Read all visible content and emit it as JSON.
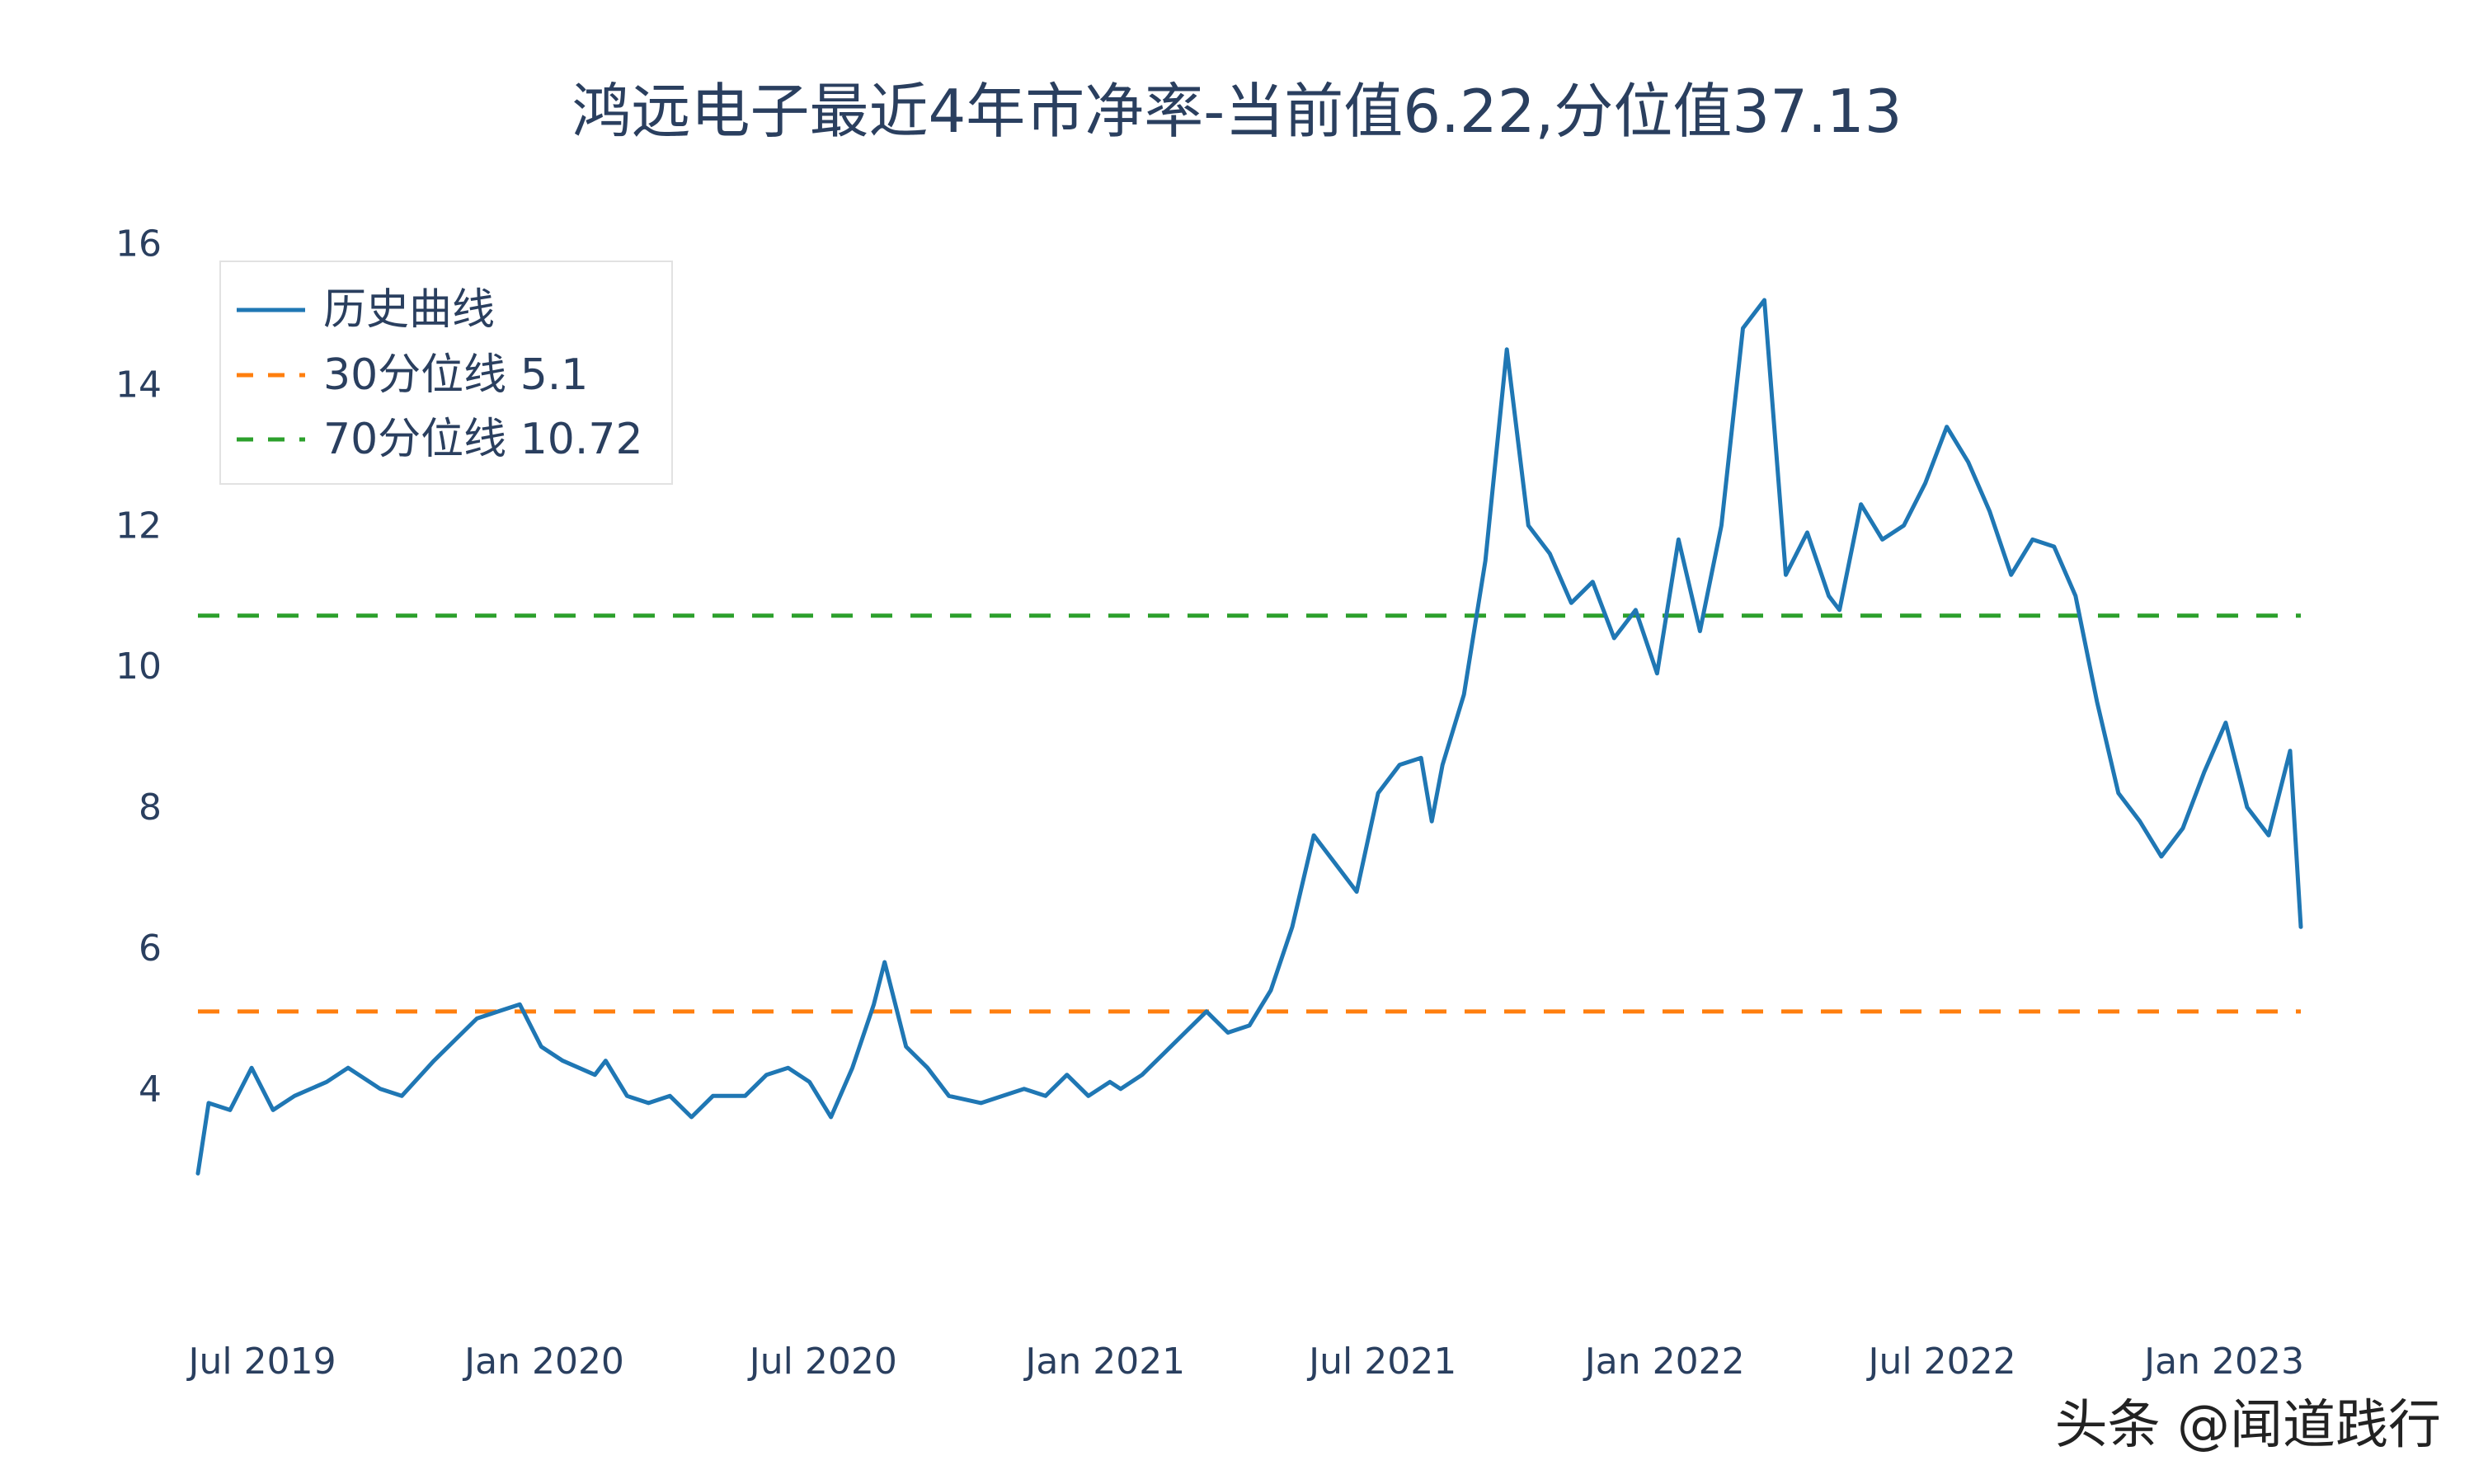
{
  "chart_data": {
    "type": "line",
    "title": "鸿远电子最近4年市净率-当前值6.22,分位值37.13",
    "xlabel": "",
    "ylabel": "",
    "ylim": [
      1.2,
      16.3
    ],
    "y_ticks": [
      4,
      6,
      8,
      10,
      12,
      14,
      16
    ],
    "y_tick_labels": [
      "4",
      "6",
      "8",
      "10",
      "12",
      "14",
      "16"
    ],
    "x_ticks": [
      "Jul 2019",
      "Jan 2020",
      "Jul 2020",
      "Jan 2021",
      "Jul 2021",
      "Jan 2022",
      "Jul 2022",
      "Jan 2023"
    ],
    "x_range": [
      "2019-05-20",
      "2023-02-20"
    ],
    "grid": false,
    "legend_position": "top-left",
    "series": [
      {
        "name": "历史曲线",
        "style": "solid",
        "color": "#1f77b4",
        "x": [
          "2019-05-20",
          "2019-05-27",
          "2019-06-10",
          "2019-06-24",
          "2019-07-08",
          "2019-07-22",
          "2019-08-12",
          "2019-08-26",
          "2019-09-16",
          "2019-09-30",
          "2019-10-21",
          "2019-11-04",
          "2019-11-18",
          "2019-12-02",
          "2019-12-16",
          "2019-12-30",
          "2020-01-13",
          "2020-02-03",
          "2020-02-10",
          "2020-02-24",
          "2020-03-09",
          "2020-03-23",
          "2020-04-06",
          "2020-04-20",
          "2020-05-11",
          "2020-05-25",
          "2020-06-08",
          "2020-06-22",
          "2020-07-06",
          "2020-07-20",
          "2020-08-03",
          "2020-08-10",
          "2020-08-24",
          "2020-09-07",
          "2020-09-21",
          "2020-10-12",
          "2020-10-26",
          "2020-11-09",
          "2020-11-23",
          "2020-12-07",
          "2020-12-21",
          "2021-01-04",
          "2021-01-11",
          "2021-01-25",
          "2021-02-08",
          "2021-02-22",
          "2021-03-08",
          "2021-03-22",
          "2021-04-05",
          "2021-04-19",
          "2021-05-03",
          "2021-05-17",
          "2021-05-31",
          "2021-06-14",
          "2021-06-28",
          "2021-07-12",
          "2021-07-26",
          "2021-08-02",
          "2021-08-09",
          "2021-08-23",
          "2021-09-06",
          "2021-09-20",
          "2021-10-04",
          "2021-10-18",
          "2021-11-01",
          "2021-11-15",
          "2021-11-29",
          "2021-12-13",
          "2021-12-27",
          "2022-01-10",
          "2022-01-24",
          "2022-02-07",
          "2022-02-21",
          "2022-03-07",
          "2022-03-21",
          "2022-04-04",
          "2022-04-18",
          "2022-04-25",
          "2022-05-09",
          "2022-05-23",
          "2022-06-06",
          "2022-06-20",
          "2022-07-04",
          "2022-07-18",
          "2022-08-01",
          "2022-08-15",
          "2022-08-29",
          "2022-09-12",
          "2022-09-26",
          "2022-10-10",
          "2022-10-24",
          "2022-11-07",
          "2022-11-21",
          "2022-12-05",
          "2022-12-19",
          "2023-01-02",
          "2023-01-16",
          "2023-01-30",
          "2023-02-13",
          "2023-02-20"
        ],
        "values": [
          2.8,
          3.8,
          3.7,
          4.3,
          3.7,
          3.9,
          4.1,
          4.3,
          4.0,
          3.9,
          4.4,
          4.7,
          5.0,
          5.1,
          5.2,
          4.6,
          4.4,
          4.2,
          4.4,
          3.9,
          3.8,
          3.9,
          3.6,
          3.9,
          3.9,
          4.2,
          4.3,
          4.1,
          3.6,
          4.3,
          5.2,
          5.8,
          4.6,
          4.3,
          3.9,
          3.8,
          3.9,
          4.0,
          3.9,
          4.2,
          3.9,
          4.1,
          4.0,
          4.2,
          4.5,
          4.8,
          5.1,
          4.8,
          4.9,
          5.4,
          6.3,
          7.6,
          7.2,
          6.8,
          8.2,
          8.6,
          8.7,
          7.8,
          8.6,
          9.6,
          11.5,
          14.5,
          12.0,
          11.6,
          10.9,
          11.2,
          10.4,
          10.8,
          9.9,
          11.8,
          10.5,
          12.0,
          14.8,
          15.2,
          11.3,
          11.9,
          11.0,
          10.8,
          12.3,
          11.8,
          12.0,
          12.6,
          13.4,
          12.9,
          12.2,
          11.3,
          11.8,
          11.7,
          11.0,
          9.5,
          8.2,
          7.8,
          7.3,
          7.7,
          8.5,
          9.2,
          8.0,
          7.6,
          8.8,
          6.3
        ],
        "comment": "approximate shape read off the plot; values in data units"
      },
      {
        "name": "30分位线 5.1",
        "style": "dash",
        "color": "#ff7f0e",
        "value": 5.1
      },
      {
        "name": "70分位线 10.72",
        "style": "dash",
        "color": "#2ca02c",
        "value": 10.72
      }
    ]
  },
  "watermark": "头条 @闻道践行"
}
